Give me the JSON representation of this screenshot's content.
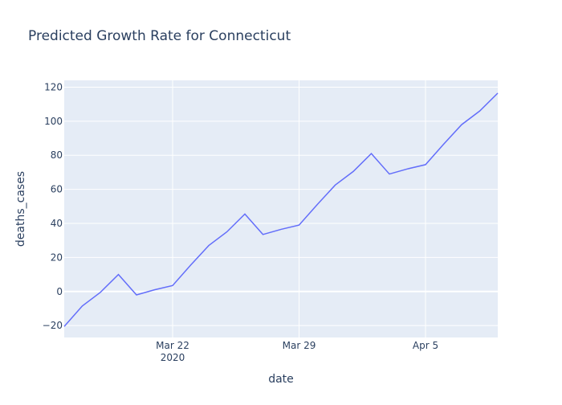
{
  "chart_data": {
    "type": "line",
    "title": "Predicted Growth Rate for Connecticut",
    "xlabel": "date",
    "ylabel": "deaths_cases",
    "x": [
      "2020-03-16",
      "2020-03-17",
      "2020-03-18",
      "2020-03-19",
      "2020-03-20",
      "2020-03-21",
      "2020-03-22",
      "2020-03-23",
      "2020-03-24",
      "2020-03-25",
      "2020-03-26",
      "2020-03-27",
      "2020-03-28",
      "2020-03-29",
      "2020-03-30",
      "2020-03-31",
      "2020-04-01",
      "2020-04-02",
      "2020-04-03",
      "2020-04-04",
      "2020-04-05",
      "2020-04-06",
      "2020-04-07",
      "2020-04-08",
      "2020-04-09"
    ],
    "series": [
      {
        "values": [
          -20.5,
          -8.5,
          -0.5,
          10,
          -2,
          1,
          3.5,
          15.5,
          27,
          35,
          45.5,
          33.5,
          36.5,
          39,
          51,
          62.5,
          70.5,
          81,
          69,
          72,
          74.5,
          86.5,
          98,
          106,
          116.5
        ]
      }
    ],
    "xlim": [
      "2020-03-16",
      "2020-04-09"
    ],
    "ylim": [
      -27,
      124
    ],
    "yticks": [
      -20,
      0,
      20,
      40,
      60,
      80,
      100,
      120
    ],
    "xticks": [
      {
        "date": "2020-03-22",
        "label": "Mar 22",
        "sublabel": "2020"
      },
      {
        "date": "2020-03-29",
        "label": "Mar 29",
        "sublabel": ""
      },
      {
        "date": "2020-04-05",
        "label": "Apr 5",
        "sublabel": ""
      }
    ],
    "grid": true,
    "colors": {
      "line": "#636efa",
      "plot_bg": "#e5ecf6",
      "grid": "#ffffff",
      "text": "#2a3f5f"
    }
  }
}
